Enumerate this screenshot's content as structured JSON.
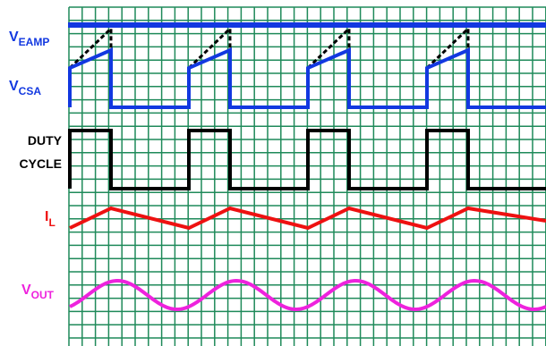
{
  "labels": {
    "veamp": {
      "main": "V",
      "sub": "EAMP"
    },
    "vcsa": {
      "main": "V",
      "sub": "CSA"
    },
    "duty_line1": "DUTY",
    "duty_line2": "CYCLE",
    "il": {
      "main": "I",
      "sub": "L"
    },
    "vout": {
      "main": "V",
      "sub": "OUT"
    }
  },
  "colors": {
    "grid": "#1f8a5a",
    "background": "#ffffff",
    "veamp": "#1238e0",
    "vcsa": "#1238e0",
    "duty": "#000000",
    "il": "#ee1111",
    "vout": "#ee22dd",
    "dashed_ramp": "#000000",
    "label_blue": "#1238e0",
    "label_black": "#000000",
    "label_red": "#ee1111",
    "label_magenta": "#ee22dd"
  }
}
